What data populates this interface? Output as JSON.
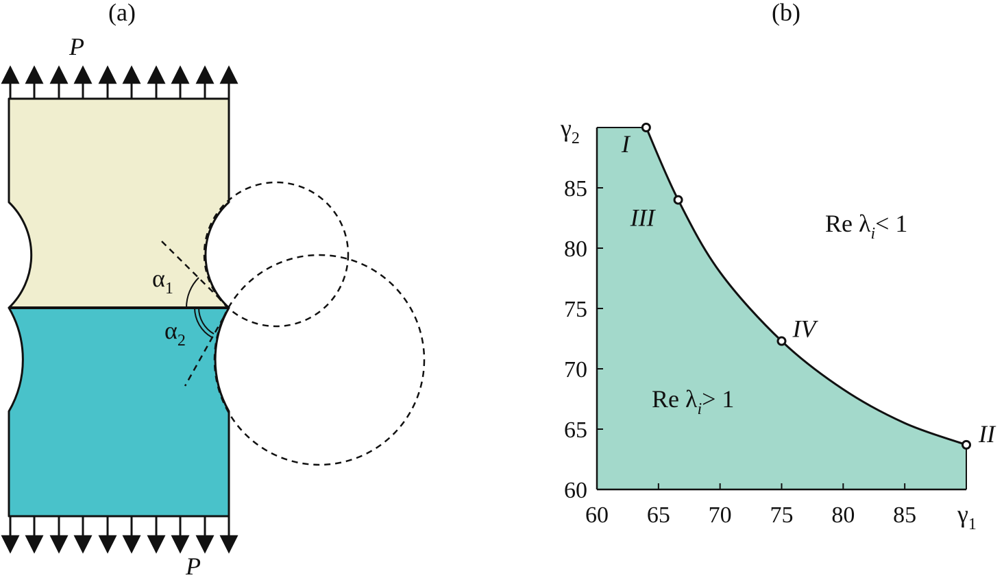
{
  "panel_a": {
    "label": "(a)",
    "load_top": "P",
    "load_bottom": "P",
    "alpha1": "α",
    "alpha1_sub": "1",
    "alpha2": "α",
    "alpha2_sub": "2",
    "colors": {
      "upper": "#f0eecf",
      "lower": "#49c2ca"
    }
  },
  "panel_b": {
    "label": "(b)",
    "x_axis_label": "γ",
    "x_axis_sub": "1",
    "y_axis_label": "γ",
    "y_axis_sub": "2",
    "region_above": {
      "text": "Re λ",
      "sub": "i",
      "rel": "< 1"
    },
    "region_below": {
      "text": "Re λ",
      "sub": "i",
      "rel": "> 1"
    },
    "fill_color": "#a3d9cb"
  },
  "chart_data": {
    "type": "area",
    "x_ticks": [
      60,
      65,
      70,
      75,
      80,
      85
    ],
    "y_ticks": [
      60,
      65,
      70,
      75,
      80,
      85
    ],
    "xlim": [
      60,
      90
    ],
    "ylim": [
      60,
      90
    ],
    "boundary_curve": {
      "x": [
        64.0,
        66.6,
        70.0,
        75.0,
        80.0,
        85.0,
        90.0
      ],
      "y": [
        90.0,
        84.0,
        78.0,
        72.3,
        68.3,
        65.5,
        63.7
      ]
    },
    "points": [
      {
        "name": "I",
        "x": 64.0,
        "y": 90.0
      },
      {
        "name": "III",
        "x": 66.6,
        "y": 84.0
      },
      {
        "name": "IV",
        "x": 75.0,
        "y": 72.3
      },
      {
        "name": "II",
        "x": 90.0,
        "y": 63.7
      }
    ]
  }
}
